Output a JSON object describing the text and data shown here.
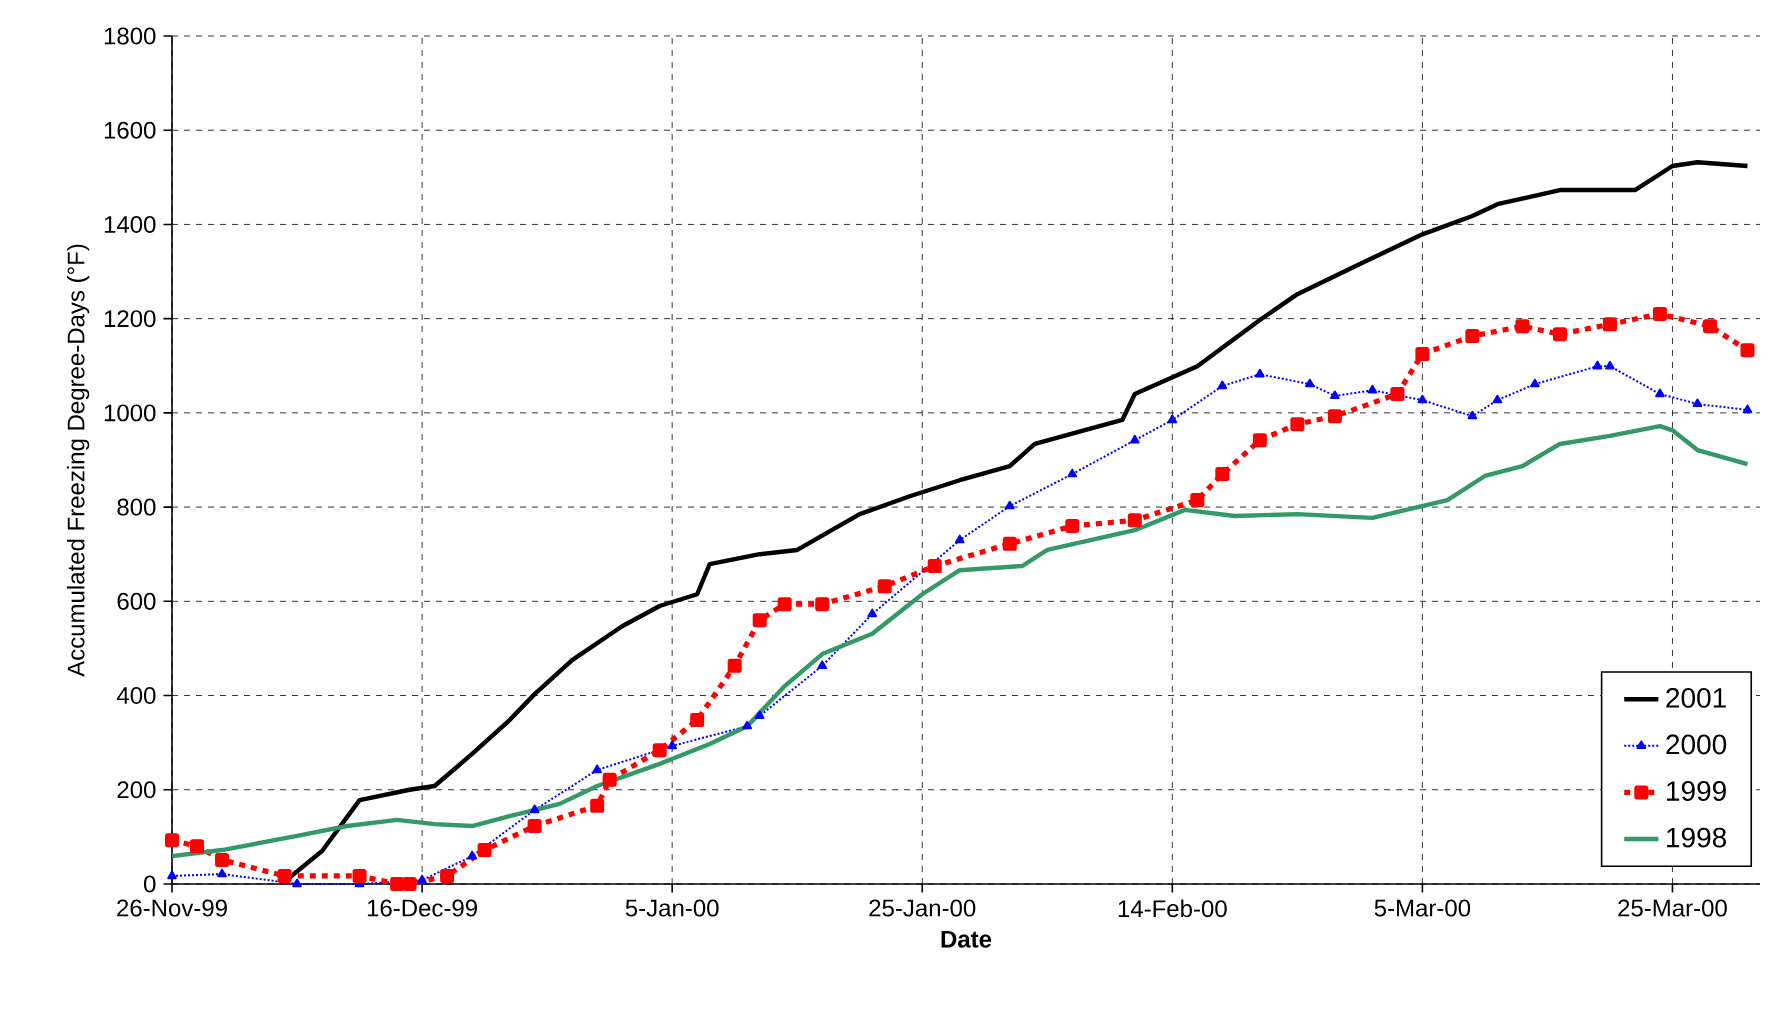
{
  "chart_data": {
    "type": "line",
    "xlabel": "Date",
    "ylabel": "Accumulated Freezing Degree-Days (°F)",
    "xlim": [
      "1999-11-26",
      "2000-04-01"
    ],
    "ylim": [
      0,
      1800
    ],
    "xticks": [
      {
        "value": "1999-11-26",
        "label": "26-Nov-99"
      },
      {
        "value": "1999-12-16",
        "label": "16-Dec-99"
      },
      {
        "value": "2000-01-05",
        "label": "5-Jan-00"
      },
      {
        "value": "2000-01-25",
        "label": "25-Jan-00"
      },
      {
        "value": "2000-02-14",
        "label": "14-Feb-00"
      },
      {
        "value": "2000-03-05",
        "label": "5-Mar-00"
      },
      {
        "value": "2000-03-25",
        "label": "25-Mar-00"
      }
    ],
    "yticks": [
      0,
      200,
      400,
      600,
      800,
      1000,
      1200,
      1400,
      1600,
      1800
    ],
    "grid": true,
    "legend": "bottom right",
    "series": [
      {
        "name": "2001",
        "color": "#000000",
        "marker": "none",
        "line_style": "solid",
        "x": [
          "1999-12-05",
          "1999-12-08",
          "1999-12-11",
          "1999-12-15",
          "1999-12-17",
          "1999-12-20",
          "1999-12-23",
          "1999-12-25",
          "1999-12-28",
          "2000-01-01",
          "2000-01-04",
          "2000-01-07",
          "2000-01-08",
          "2000-01-12",
          "2000-01-15",
          "2000-01-20",
          "2000-01-24",
          "2000-01-28",
          "2000-02-01",
          "2000-02-03",
          "2000-02-10",
          "2000-02-11",
          "2000-02-16",
          "2000-02-21",
          "2000-02-24",
          "2000-02-29",
          "2000-03-05",
          "2000-03-09",
          "2000-03-11",
          "2000-03-16",
          "2000-03-22",
          "2000-03-25",
          "2000-03-27",
          "2000-03-31"
        ],
        "values": [
          5,
          70,
          178,
          200,
          208,
          276,
          348,
          403,
          475,
          547,
          590,
          615,
          679,
          700,
          709,
          785,
          823,
          857,
          887,
          934,
          985,
          1040,
          1099,
          1197,
          1252,
          1316,
          1379,
          1418,
          1443,
          1473,
          1473,
          1524,
          1532,
          1524
        ]
      },
      {
        "name": "2000",
        "color": "#0000ff",
        "marker": "triangle",
        "line_style": "dotted",
        "x": [
          "1999-11-26",
          "1999-11-30",
          "1999-12-06",
          "1999-12-11",
          "1999-12-16",
          "1999-12-20",
          "1999-12-25",
          "1999-12-30",
          "2000-01-05",
          "2000-01-11",
          "2000-01-12",
          "2000-01-17",
          "2000-01-21",
          "2000-01-28",
          "2000-02-01",
          "2000-02-06",
          "2000-02-11",
          "2000-02-14",
          "2000-02-18",
          "2000-02-21",
          "2000-02-25",
          "2000-02-27",
          "2000-03-01",
          "2000-03-05",
          "2000-03-09",
          "2000-03-11",
          "2000-03-14",
          "2000-03-19",
          "2000-03-20",
          "2000-03-24",
          "2000-03-27",
          "2000-03-31"
        ],
        "values": [
          17,
          21,
          0,
          0,
          8,
          59,
          157,
          242,
          293,
          335,
          357,
          463,
          573,
          730,
          802,
          870,
          942,
          985,
          1057,
          1082,
          1061,
          1036,
          1048,
          1027,
          993,
          1027,
          1061,
          1099,
          1099,
          1040,
          1019,
          1006
        ]
      },
      {
        "name": "1999",
        "color": "#ff0000",
        "marker": "square",
        "line_style": "dashed",
        "x": [
          "1999-11-26",
          "1999-11-28",
          "1999-11-30",
          "1999-12-05",
          "1999-12-11",
          "1999-12-14",
          "1999-12-15",
          "1999-12-18",
          "1999-12-21",
          "1999-12-25",
          "1999-12-30",
          "1999-12-31",
          "2000-01-04",
          "2000-01-07",
          "2000-01-10",
          "2000-01-12",
          "2000-01-14",
          "2000-01-17",
          "2000-01-22",
          "2000-01-26",
          "2000-02-01",
          "2000-02-06",
          "2000-02-11",
          "2000-02-16",
          "2000-02-18",
          "2000-02-21",
          "2000-02-24",
          "2000-02-27",
          "2000-03-03",
          "2000-03-05",
          "2000-03-09",
          "2000-03-13",
          "2000-03-16",
          "2000-03-20",
          "2000-03-24",
          "2000-03-28",
          "2000-03-31"
        ],
        "values": [
          93,
          80,
          51,
          17,
          17,
          0,
          0,
          17,
          72,
          123,
          166,
          221,
          284,
          348,
          463,
          560,
          594,
          594,
          632,
          675,
          722,
          760,
          772,
          815,
          870,
          942,
          976,
          993,
          1040,
          1125,
          1163,
          1184,
          1167,
          1188,
          1210,
          1184,
          1133
        ]
      },
      {
        "name": "1998",
        "color": "#339966",
        "marker": "none",
        "line_style": "solid",
        "x": [
          "1999-11-26",
          "1999-11-30",
          "1999-12-06",
          "1999-12-10",
          "1999-12-14",
          "1999-12-17",
          "1999-12-20",
          "1999-12-23",
          "1999-12-27",
          "1999-12-30",
          "2000-01-04",
          "2000-01-08",
          "2000-01-11",
          "2000-01-14",
          "2000-01-17",
          "2000-01-21",
          "2000-01-25",
          "2000-01-28",
          "2000-02-02",
          "2000-02-04",
          "2000-02-11",
          "2000-02-15",
          "2000-02-19",
          "2000-02-24",
          "2000-03-01",
          "2000-03-07",
          "2000-03-10",
          "2000-03-13",
          "2000-03-16",
          "2000-03-20",
          "2000-03-24",
          "2000-03-25",
          "2000-03-27",
          "2000-03-31"
        ],
        "values": [
          59,
          72,
          102,
          123,
          136,
          127,
          123,
          144,
          170,
          208,
          255,
          297,
          335,
          420,
          488,
          531,
          615,
          666,
          675,
          709,
          751,
          794,
          781,
          785,
          777,
          815,
          866,
          887,
          934,
          951,
          972,
          963,
          921,
          891
        ]
      }
    ]
  }
}
